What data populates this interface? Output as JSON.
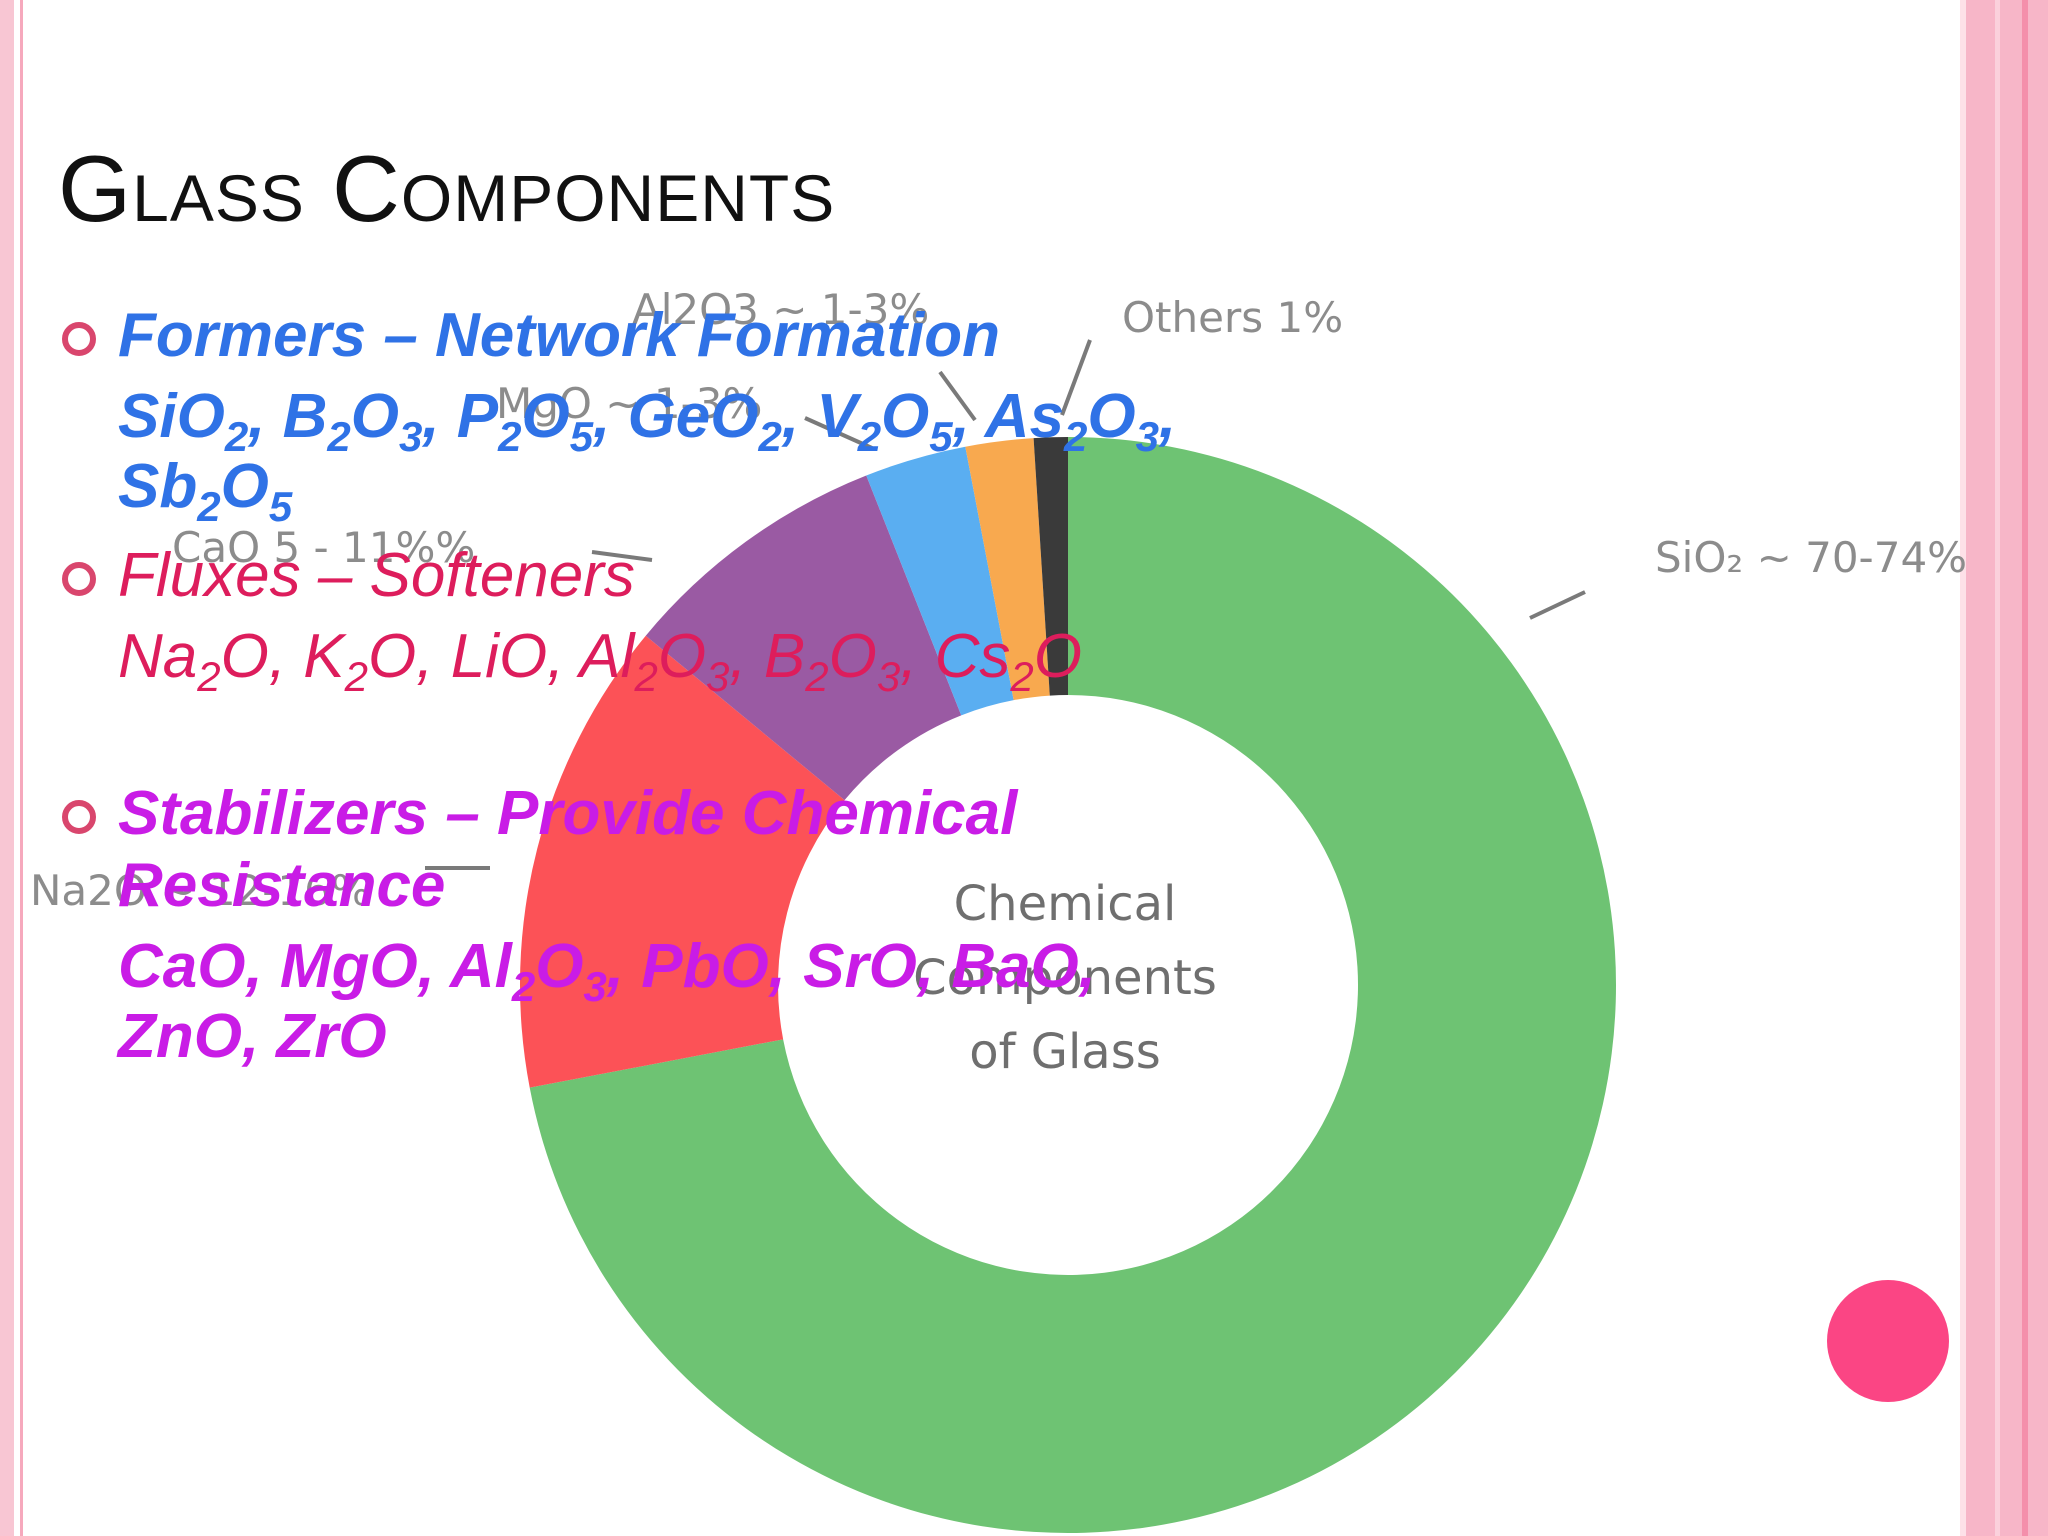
{
  "slide": {
    "title": "Glass Components"
  },
  "bullets": {
    "formers": {
      "heading": "Formers – Network Formation",
      "formula": [
        {
          "t": "SiO"
        },
        {
          "s": "2"
        },
        {
          "t": ", B"
        },
        {
          "s": "2"
        },
        {
          "t": "O"
        },
        {
          "s": "3"
        },
        {
          "t": ", P"
        },
        {
          "s": "2"
        },
        {
          "t": "O"
        },
        {
          "s": "5"
        },
        {
          "t": ", GeO"
        },
        {
          "s": "2"
        },
        {
          "t": ", V"
        },
        {
          "s": "2"
        },
        {
          "t": "O"
        },
        {
          "s": "5"
        },
        {
          "t": ", As"
        },
        {
          "s": "2"
        },
        {
          "t": "O"
        },
        {
          "s": "3"
        },
        {
          "t": ", Sb"
        },
        {
          "s": "2"
        },
        {
          "t": "O"
        },
        {
          "s": "5"
        }
      ]
    },
    "fluxes": {
      "heading": "Fluxes – Softeners",
      "formula": [
        {
          "t": "Na"
        },
        {
          "s": "2"
        },
        {
          "t": "O, K"
        },
        {
          "s": "2"
        },
        {
          "t": "O, LiO, Al"
        },
        {
          "s": "2"
        },
        {
          "t": "O"
        },
        {
          "s": "3"
        },
        {
          "t": ", B"
        },
        {
          "s": "2"
        },
        {
          "t": "O"
        },
        {
          "s": "3"
        },
        {
          "t": ", Cs"
        },
        {
          "s": "2"
        },
        {
          "t": "O"
        }
      ]
    },
    "stabilizers": {
      "heading": "Stabilizers – Provide Chemical Resistance",
      "formula": [
        {
          "t": "CaO, MgO, Al"
        },
        {
          "s": "2"
        },
        {
          "t": "O"
        },
        {
          "s": "3"
        },
        {
          "t": ", PbO, SrO, BaO, ZnO, ZrO"
        }
      ]
    }
  },
  "colors": {
    "formers": "#2f72e6",
    "fluxes": "#dd1d5c",
    "stabilizers": "#c91ce6",
    "accent": "#fb4584"
  },
  "chart_data": {
    "type": "pie",
    "title": "Chemical Components of Glass",
    "slices": [
      {
        "label": "SiO₂ ~ 70-74%",
        "value": 72,
        "color": "#6ec373"
      },
      {
        "label": "Na2O ~ 12-16%",
        "value": 14,
        "color": "#fc5257"
      },
      {
        "label": "CaO 5 - 11%%",
        "value": 8,
        "color": "#9a5aa3"
      },
      {
        "label": "MgO ~ 1-3%",
        "value": 3,
        "color": "#5aaef1"
      },
      {
        "label": "Al2O3 ~ 1-3%",
        "value": 2,
        "color": "#f8a94f"
      },
      {
        "label": "Others 1%",
        "value": 1,
        "color": "#3a3a3a"
      }
    ],
    "center_text": [
      "Chemical",
      "Components",
      "of Glass"
    ]
  }
}
